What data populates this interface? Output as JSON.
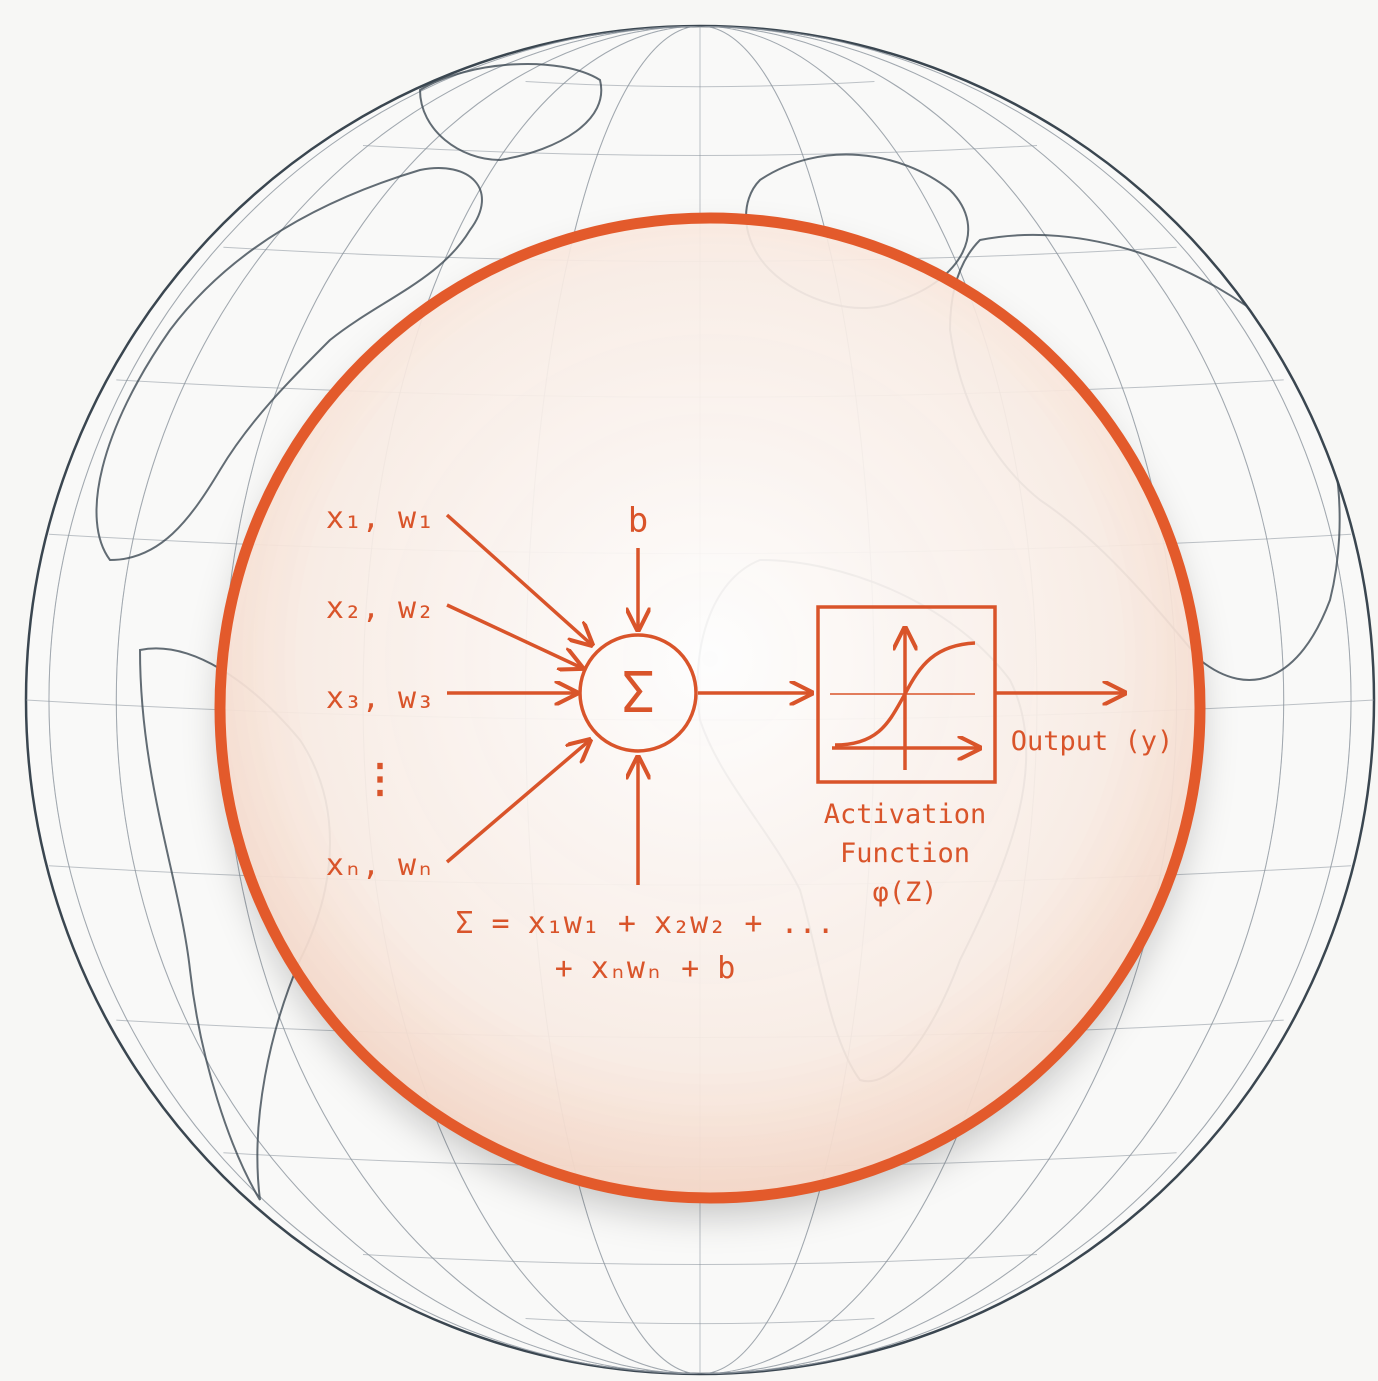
{
  "inputs": [
    {
      "label": "x₁, w₁"
    },
    {
      "label": "x₂, w₂"
    },
    {
      "label": "x₃, w₃"
    },
    {
      "label": "xₙ, wₙ"
    }
  ],
  "ellipsis": "⋮",
  "bias": "b",
  "summation": "Σ",
  "equation": [
    "Σ = x₁w₁ + x₂w₂ + ...",
    "+ xₙwₙ + b"
  ],
  "activation": [
    "Activation",
    "Function",
    "φ(Z)"
  ],
  "output": "Output (y)"
}
